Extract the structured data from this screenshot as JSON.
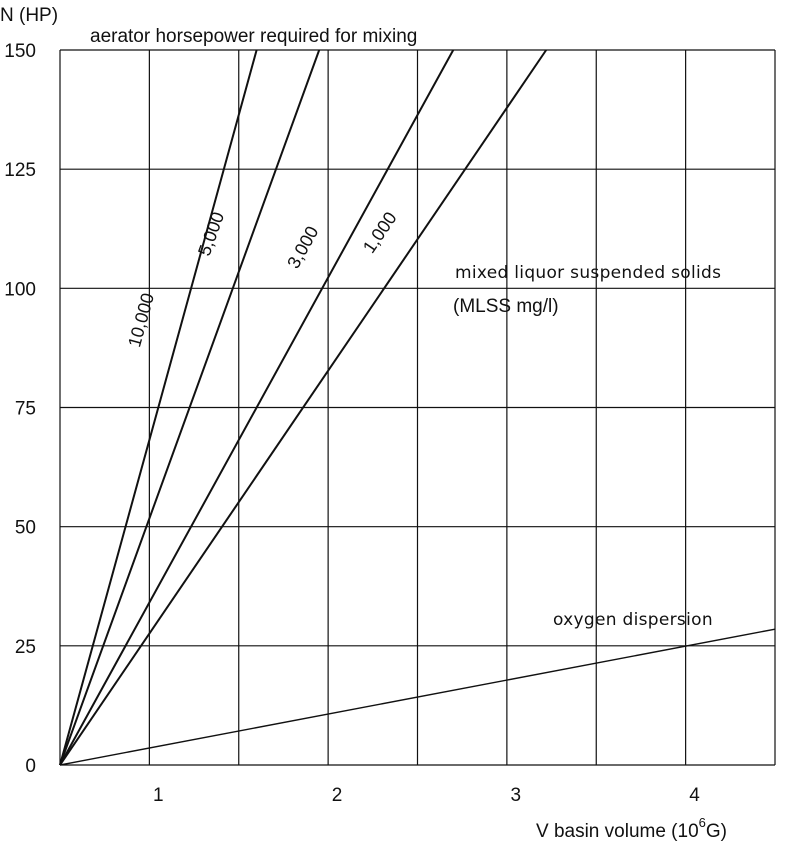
{
  "chart_data": {
    "type": "line",
    "title": "aerator horsepower required for mixing",
    "ylabel": "N  (HP)",
    "xlabel_prefix": "V  basin volume (10",
    "xlabel_exp": "6",
    "xlabel_suffix": "G)",
    "ylim": [
      0,
      150
    ],
    "xlim": [
      0,
      4
    ],
    "y_ticks": [
      0,
      25,
      50,
      75,
      100,
      125,
      150
    ],
    "x_ticks": [
      1,
      2,
      3,
      4
    ],
    "grid": true,
    "series_group_label": "mixed liquor suspended solids",
    "series_group_unit": "(MLSS mg/l)",
    "series": [
      {
        "name": "10,000",
        "x": [
          0,
          1.1
        ],
        "y": [
          0,
          150
        ]
      },
      {
        "name": "5,000",
        "x": [
          0,
          1.45
        ],
        "y": [
          0,
          150
        ]
      },
      {
        "name": "3,000",
        "x": [
          0,
          2.2
        ],
        "y": [
          0,
          150
        ]
      },
      {
        "name": "1,000",
        "x": [
          0,
          2.72
        ],
        "y": [
          0,
          150
        ]
      },
      {
        "name": "oxygen dispersion",
        "x": [
          0,
          4.0
        ],
        "y": [
          0,
          28.5
        ]
      }
    ]
  }
}
